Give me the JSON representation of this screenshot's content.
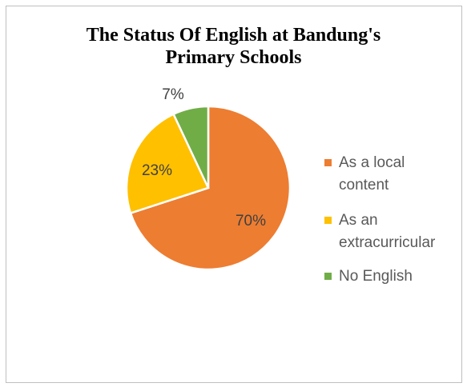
{
  "chart_data": {
    "type": "pie",
    "title": "The Status Of English at Bandung's Primary Schools",
    "title_line1": "The Status Of English at Bandung's",
    "title_line2": "Primary Schools",
    "categories": [
      "As a local content",
      "As an extracurricular",
      "No English"
    ],
    "values": [
      70,
      23,
      7
    ],
    "labels": [
      "70%",
      "23%",
      "7%"
    ],
    "colors": [
      "#ED7D31",
      "#FFC000",
      "#70AD47"
    ],
    "legend_position": "right"
  },
  "legend": {
    "items": [
      {
        "line1": "As a local",
        "line2": "content"
      },
      {
        "line1": "As an",
        "line2": "extracurricular"
      },
      {
        "line1": "No English",
        "line2": ""
      }
    ]
  }
}
